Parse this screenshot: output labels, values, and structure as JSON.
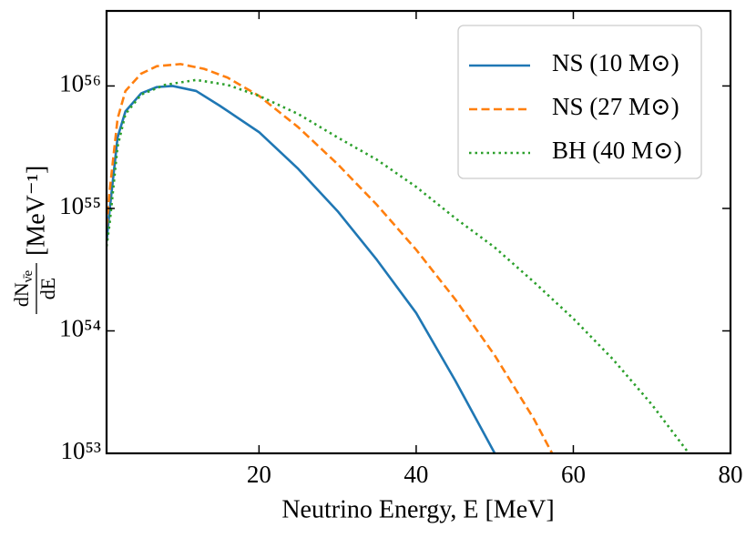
{
  "chart_data": {
    "type": "line",
    "xlabel": "Neutrino Energy, E [MeV]",
    "ylabel": {
      "numerator": "dN",
      "numerator_sub": "ν̄e",
      "denominator": "dE",
      "unit": "[MeV⁻¹]"
    },
    "xlim": [
      0.6,
      80
    ],
    "ylim": [
      1e+53,
      4.1e+56
    ],
    "log_y": true,
    "xticks": [
      20,
      40,
      60,
      80
    ],
    "yticks": [
      {
        "value": 1e+53,
        "label": "10⁵³"
      },
      {
        "value": 1e+54,
        "label": "10⁵⁴"
      },
      {
        "value": 1e+55,
        "label": "10⁵⁵"
      },
      {
        "value": 1e+56,
        "label": "10⁵⁶"
      }
    ],
    "legend": "upper right",
    "series": [
      {
        "name": "NS (10 M⊙)",
        "color": "#1f77b4",
        "linestyle": "solid",
        "x": [
          0.6,
          1,
          2,
          3,
          5,
          7,
          9,
          12,
          15,
          20,
          25,
          30,
          35,
          40,
          45,
          50
        ],
        "values": [
          5.4e+54,
          9.8e+54,
          3.8e+55,
          6.2e+55,
          8.7e+55,
          9.8e+55,
          1e+56,
          9.1e+55,
          6.9e+55,
          4.2e+55,
          2.1e+55,
          9.5e+54,
          3.8e+54,
          1.4e+54,
          3.9e+53,
          1e+53
        ]
      },
      {
        "name": "NS (27 M⊙)",
        "color": "#ff7f0e",
        "linestyle": "dashed",
        "x": [
          0.6,
          1,
          2,
          3,
          5,
          7,
          10,
          13,
          16,
          20,
          25,
          30,
          35,
          40,
          45,
          50,
          55,
          57.3
        ],
        "values": [
          7.1e+54,
          1.4e+55,
          5.4e+55,
          9.1e+55,
          1.26e+56,
          1.45e+56,
          1.51e+56,
          1.38e+56,
          1.17e+56,
          8.3e+55,
          4.6e+55,
          2.3e+55,
          1.07e+55,
          4.6e+54,
          1.8e+54,
          6.3e+53,
          1.9e+53,
          1e+53
        ]
      },
      {
        "name": "BH (40 M⊙)",
        "color": "#2ca02c",
        "linestyle": "dotted",
        "x": [
          0.6,
          1,
          2,
          3,
          5,
          8,
          12,
          16,
          20,
          25,
          30,
          35,
          40,
          45,
          50,
          55,
          60,
          65,
          70,
          74.7
        ],
        "values": [
          4.9e+54,
          7.6e+54,
          3.2e+55,
          5.9e+55,
          8.5e+55,
          1.02e+56,
          1.12e+56,
          1.02e+56,
          8.3e+55,
          5.9e+55,
          3.8e+55,
          2.5e+55,
          1.5e+55,
          8.3e+54,
          4.8e+54,
          2.5e+54,
          1.26e+54,
          5.9e+53,
          2.5e+53,
          1e+53
        ]
      }
    ]
  }
}
